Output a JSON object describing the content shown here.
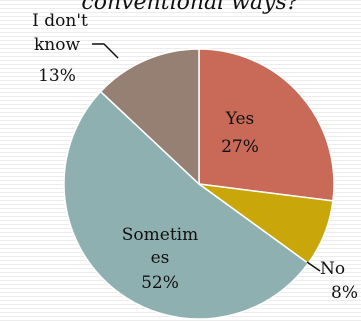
{
  "chart_data": {
    "type": "pie",
    "title": "conventional ways?",
    "slices": [
      {
        "label": "Yes",
        "value": 27,
        "pct_text": "27%",
        "color": "#c86a57"
      },
      {
        "label": "No",
        "value": 8,
        "pct_text": "8%",
        "color": "#c9a70b"
      },
      {
        "label": "Sometimes",
        "value": 52,
        "pct_text": "52%",
        "color": "#8fb0b0"
      },
      {
        "label": "I don't know",
        "value": 13,
        "pct_text": "13%",
        "color": "#968074"
      }
    ],
    "label_text": {
      "yes": [
        "Yes"
      ],
      "no": [
        "No"
      ],
      "sometimes": [
        "Sometim",
        "es"
      ],
      "dontknow": [
        "I don't",
        "know"
      ]
    }
  }
}
